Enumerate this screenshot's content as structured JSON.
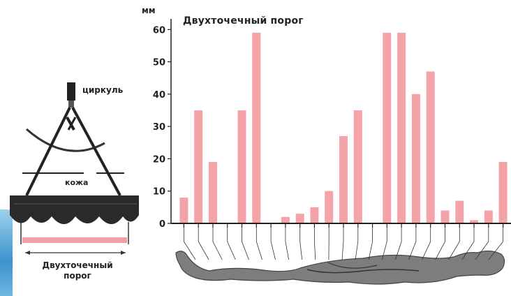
{
  "labels": {
    "unit": "мм",
    "compass": "циркуль",
    "skin": "кожа",
    "threshold_line1": "Двухточечный",
    "threshold_line2": "порог"
  },
  "colors": {
    "bar": "#f4a4a8",
    "axis": "#222222",
    "body": "#7d7d7d",
    "skin_band": "#2a2a2a",
    "bracket": "#f2a0a8"
  },
  "chart_data": {
    "type": "bar",
    "title": "Двухточечный порог",
    "ylabel": "мм",
    "xlabel": "",
    "ylim": [
      0,
      62
    ],
    "yticks": [
      0,
      10,
      20,
      30,
      40,
      50,
      60
    ],
    "values": [
      8,
      35,
      19,
      0,
      35,
      59,
      0,
      2,
      3,
      5,
      10,
      27,
      35,
      0,
      59,
      59,
      40,
      47,
      4,
      7,
      1,
      4,
      19
    ],
    "grid": false,
    "legend": "none"
  }
}
